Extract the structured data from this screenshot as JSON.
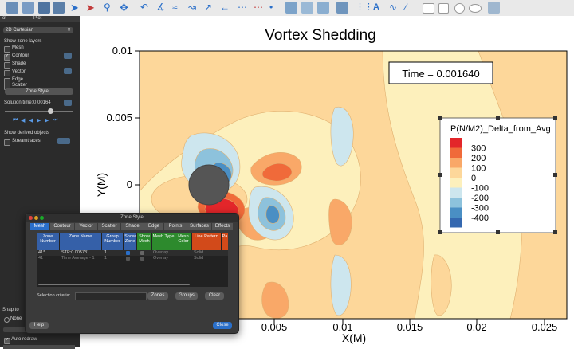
{
  "sidebar": {
    "tab_label": "Plot",
    "tab_prefix": "ot",
    "plot_type": "2D Cartesian",
    "show_zone_layers": "Show zone layers",
    "layers": [
      {
        "label": "Mesh",
        "checked": false
      },
      {
        "label": "Contour",
        "checked": true
      },
      {
        "label": "Shade",
        "checked": false
      },
      {
        "label": "Vector",
        "checked": false
      },
      {
        "label": "Edge",
        "checked": false
      },
      {
        "label": "Scatter",
        "checked": false
      }
    ],
    "zone_style_button": "Zone Style...",
    "solution_time_label": "Solution time:",
    "solution_time_value": "0.00164",
    "show_derived": "Show derived objects",
    "streamtraces": "Streamtraces",
    "snap_to": "Snap to",
    "snap_none": "None",
    "auto_redraw": "Auto redraw"
  },
  "plot": {
    "title": "Vortex Shedding",
    "time_label": "Time = 0.001640",
    "xlabel": "X(M)",
    "ylabel": "Y(M)",
    "x_ticks": [
      "0.005",
      "0.01",
      "0.015",
      "0.02",
      "0.025"
    ],
    "y_ticks": [
      "0.01",
      "0.005",
      "0"
    ],
    "legend_title": "P(N/M2)_Delta_from_Avg",
    "legend_levels": [
      "300",
      "200",
      "100",
      "0",
      "-100",
      "-200",
      "-300",
      "-400"
    ],
    "legend_colors": [
      "#e3262a",
      "#f06a3a",
      "#f9a868",
      "#fdd79a",
      "#fdf0bc",
      "#cde6ee",
      "#8dc2dc",
      "#4a8fc4",
      "#3468b0"
    ]
  },
  "dialog": {
    "title": "Zone Style",
    "tabs": [
      "Mesh",
      "Contour",
      "Vector",
      "Scatter",
      "Shade",
      "Edge",
      "Points",
      "Surfaces",
      "Effects"
    ],
    "columns": [
      "Zone Number",
      "Zone Name",
      "Group Number",
      "Show Zone",
      "Show Mesh",
      "Mesh Type",
      "Mesh Color",
      "Line Pattern",
      "Pa"
    ],
    "rows": [
      {
        "num": "41*",
        "name": "STP:0.005781",
        "group": "1",
        "type": "Overlay",
        "pattern": "Solid"
      },
      {
        "num": "41",
        "name": "Time Average - 1",
        "group": "1",
        "type": "Overlay",
        "pattern": "Solid"
      }
    ],
    "selection_label": "Selection criteria:",
    "zones_button": "Zones",
    "groups_button": "Groups",
    "clear_button": "Clear",
    "help_button": "Help",
    "close_button": "Close"
  }
}
